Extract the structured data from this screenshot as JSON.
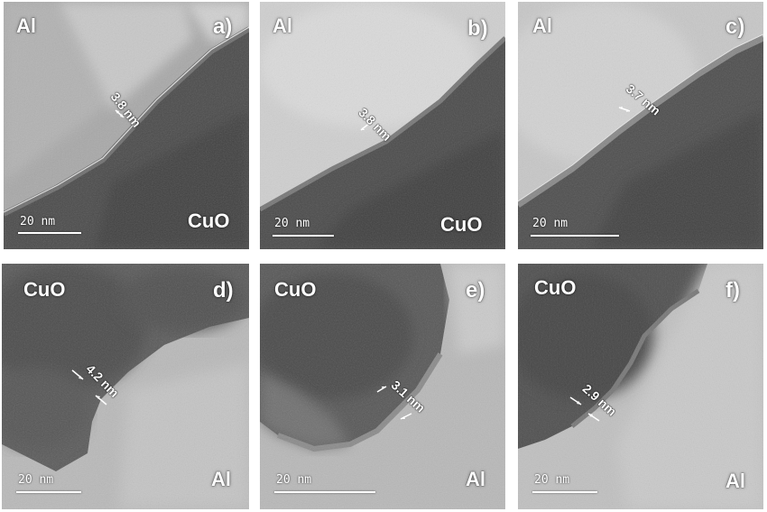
{
  "panels": {
    "a": {
      "letter": "a)",
      "mat_top": "Al",
      "mat_bottom": "CuO",
      "thickness": "3.8 nm",
      "scale": "20 nm"
    },
    "b": {
      "letter": "b)",
      "mat_top": "Al",
      "mat_bottom": "CuO",
      "thickness": "3.8 nm",
      "scale": "20 nm"
    },
    "c": {
      "letter": "c)",
      "mat_top": "Al",
      "mat_bottom": "",
      "thickness": "3.7 nm",
      "scale": "20 nm"
    },
    "d": {
      "letter": "d)",
      "mat_top": "CuO",
      "mat_bottom": "Al",
      "thickness": "4.2 nm",
      "scale": "20 nm"
    },
    "e": {
      "letter": "e)",
      "mat_top": "CuO",
      "mat_bottom": "Al",
      "thickness": "3.1 nm",
      "scale": "20 nm"
    },
    "f": {
      "letter": "f)",
      "mat_top": "CuO",
      "mat_bottom": "Al",
      "thickness": "2.9 nm",
      "scale": "20 nm"
    }
  }
}
